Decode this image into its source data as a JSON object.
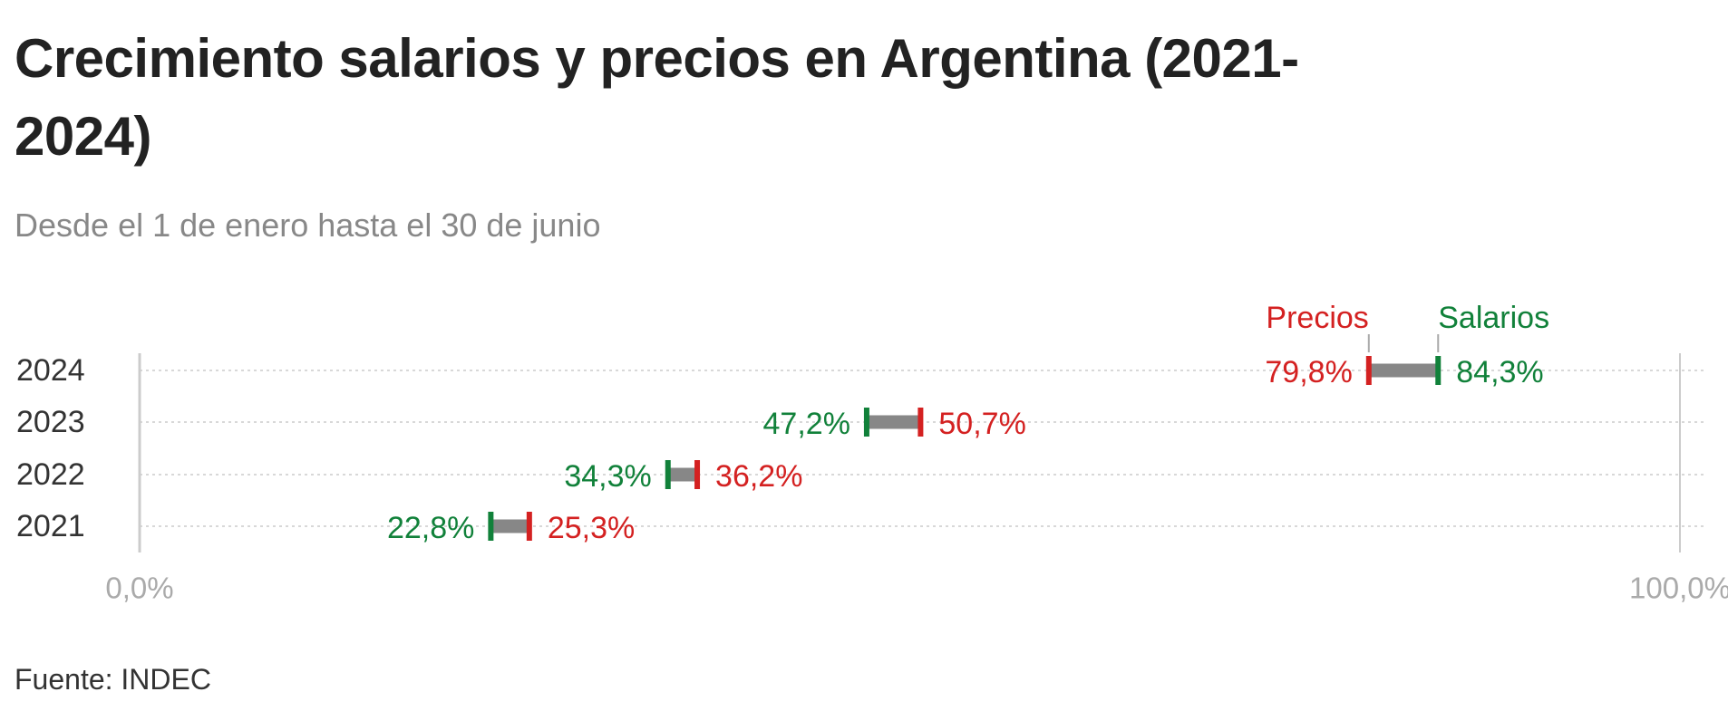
{
  "title": "Crecimiento salarios y precios en Argentina (2021-2024)",
  "subtitle": "Desde el 1 de enero hasta el 30 de junio",
  "source": "Fuente: INDEC",
  "colors": {
    "precios": "#d42121",
    "salarios": "#11813a",
    "connector": "#878787",
    "grid": "#cccccc",
    "axis": "#aaaaaa"
  },
  "chart_data": {
    "type": "dot",
    "categories": [
      "2024",
      "2023",
      "2022",
      "2021"
    ],
    "series": [
      {
        "name": "Precios",
        "values": [
          79.8,
          50.7,
          36.2,
          25.3
        ],
        "labels": [
          "79,8%",
          "50,7%",
          "36,2%",
          "25,3%"
        ]
      },
      {
        "name": "Salarios",
        "values": [
          84.3,
          47.2,
          34.3,
          22.8
        ],
        "labels": [
          "84,3%",
          "47,2%",
          "34,3%",
          "22,8%"
        ]
      }
    ],
    "xlim": [
      0,
      100
    ],
    "x_tick_labels": [
      "0,0%",
      "100,0%"
    ]
  }
}
